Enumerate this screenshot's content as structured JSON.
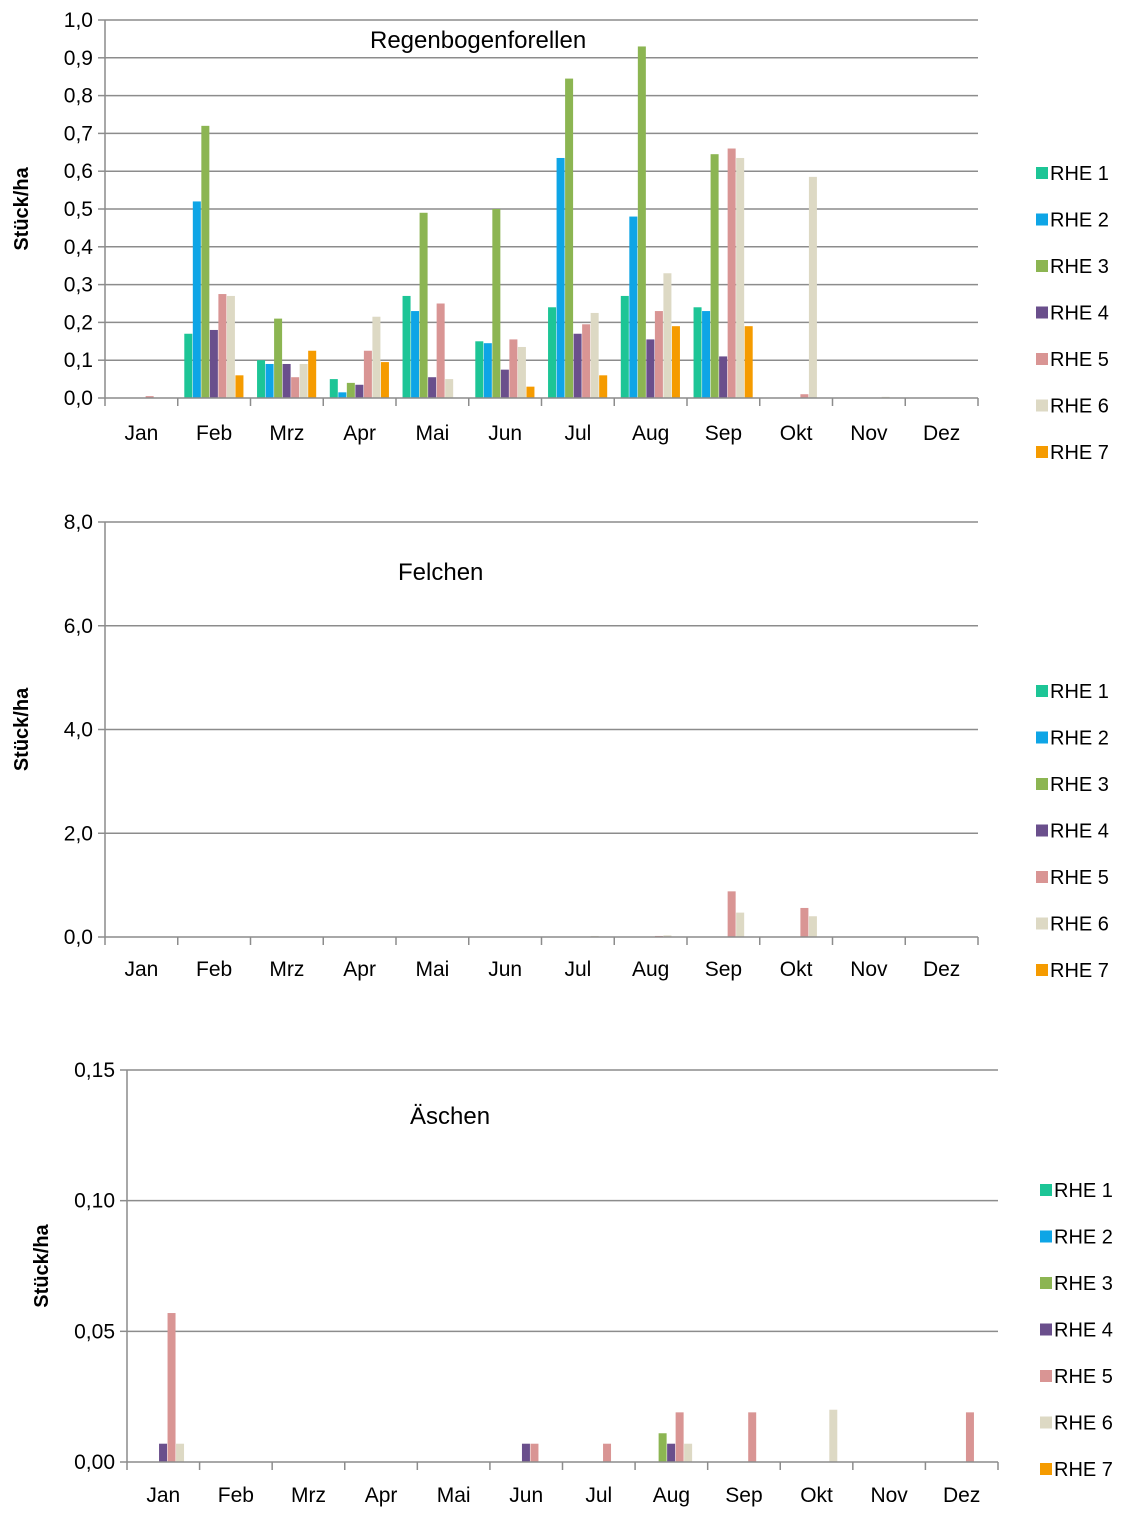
{
  "chart_data": [
    {
      "type": "bar",
      "title": "Regenbogenforellen",
      "xlabel": "",
      "ylabel": "Stück/ha",
      "ylim": [
        0,
        1.0
      ],
      "ytick_step": 0.1,
      "ytick_decimals": 1,
      "grid": true,
      "legend": "right",
      "categories": [
        "Jan",
        "Feb",
        "Mrz",
        "Apr",
        "Mai",
        "Jun",
        "Jul",
        "Aug",
        "Sep",
        "Okt",
        "Nov",
        "Dez"
      ],
      "series": [
        {
          "name": "RHE 1",
          "color": "#1dc596",
          "values": [
            0,
            0.17,
            0.1,
            0.05,
            0.27,
            0.15,
            0.24,
            0.27,
            0.24,
            0,
            0,
            0
          ]
        },
        {
          "name": "RHE 2",
          "color": "#0ea5e6",
          "values": [
            0,
            0.52,
            0.09,
            0.015,
            0.23,
            0.145,
            0.635,
            0.48,
            0.23,
            0,
            0,
            0
          ]
        },
        {
          "name": "RHE 3",
          "color": "#8cb552",
          "values": [
            0,
            0.72,
            0.21,
            0.04,
            0.49,
            0.5,
            0.845,
            0.93,
            0.645,
            0,
            0,
            0
          ]
        },
        {
          "name": "RHE 4",
          "color": "#6a4f8c",
          "values": [
            0,
            0.18,
            0.09,
            0.035,
            0.055,
            0.075,
            0.17,
            0.155,
            0.11,
            0,
            0,
            0
          ]
        },
        {
          "name": "RHE 5",
          "color": "#d99594",
          "values": [
            0.005,
            0.275,
            0.055,
            0.125,
            0.25,
            0.155,
            0.195,
            0.23,
            0.66,
            0.01,
            0,
            0
          ]
        },
        {
          "name": "RHE 6",
          "color": "#ddd9c4",
          "values": [
            0,
            0.27,
            0.09,
            0.215,
            0.05,
            0.135,
            0.225,
            0.33,
            0.635,
            0.585,
            0.003,
            0
          ]
        },
        {
          "name": "RHE 7",
          "color": "#f59b00",
          "values": [
            0,
            0.06,
            0.125,
            0.095,
            0,
            0.03,
            0.06,
            0.19,
            0.19,
            0,
            0,
            0
          ]
        }
      ]
    },
    {
      "type": "bar",
      "title": "Felchen",
      "xlabel": "",
      "ylabel": "Stück/ha",
      "ylim": [
        0,
        8.0
      ],
      "ytick_step": 2.0,
      "ytick_decimals": 1,
      "grid": true,
      "legend": "right",
      "categories": [
        "Jan",
        "Feb",
        "Mrz",
        "Apr",
        "Mai",
        "Jun",
        "Jul",
        "Aug",
        "Sep",
        "Okt",
        "Nov",
        "Dez"
      ],
      "series": [
        {
          "name": "RHE 1",
          "color": "#1dc596",
          "values": [
            0,
            0,
            0,
            0,
            0,
            0,
            0,
            0,
            0,
            0,
            0,
            0
          ]
        },
        {
          "name": "RHE 2",
          "color": "#0ea5e6",
          "values": [
            0,
            0,
            0,
            0,
            0,
            0,
            0,
            0,
            0,
            0,
            0,
            0
          ]
        },
        {
          "name": "RHE 3",
          "color": "#8cb552",
          "values": [
            0,
            0,
            0,
            0,
            0,
            0,
            0,
            0,
            0,
            0,
            0,
            0
          ]
        },
        {
          "name": "RHE 4",
          "color": "#6a4f8c",
          "values": [
            0,
            0,
            0,
            0,
            0,
            0,
            0,
            0,
            0,
            0,
            0,
            0
          ]
        },
        {
          "name": "RHE 5",
          "color": "#d99594",
          "values": [
            0,
            0,
            0,
            0,
            0,
            0,
            0.01,
            0.02,
            0.88,
            0.56,
            0,
            0
          ]
        },
        {
          "name": "RHE 6",
          "color": "#ddd9c4",
          "values": [
            0,
            0,
            0,
            0,
            0,
            0,
            0.02,
            0.03,
            0.47,
            0.4,
            0,
            0
          ]
        },
        {
          "name": "RHE 7",
          "color": "#f59b00",
          "values": [
            0,
            0,
            0,
            0,
            0,
            0,
            0,
            0,
            0,
            0,
            0,
            0
          ]
        }
      ]
    },
    {
      "type": "bar",
      "title": "Äschen",
      "xlabel": "",
      "ylabel": "Stück/ha",
      "ylim": [
        0,
        0.15
      ],
      "ytick_step": 0.05,
      "ytick_decimals": 2,
      "grid": true,
      "legend": "right",
      "categories": [
        "Jan",
        "Feb",
        "Mrz",
        "Apr",
        "Mai",
        "Jun",
        "Jul",
        "Aug",
        "Sep",
        "Okt",
        "Nov",
        "Dez"
      ],
      "series": [
        {
          "name": "RHE 1",
          "color": "#1dc596",
          "values": [
            0,
            0,
            0,
            0,
            0,
            0,
            0,
            0,
            0,
            0,
            0,
            0
          ]
        },
        {
          "name": "RHE 2",
          "color": "#0ea5e6",
          "values": [
            0,
            0,
            0,
            0,
            0,
            0,
            0,
            0,
            0,
            0,
            0,
            0
          ]
        },
        {
          "name": "RHE 3",
          "color": "#8cb552",
          "values": [
            0,
            0,
            0,
            0,
            0,
            0,
            0,
            0.011,
            0,
            0,
            0,
            0
          ]
        },
        {
          "name": "RHE 4",
          "color": "#6a4f8c",
          "values": [
            0.007,
            0,
            0,
            0,
            0,
            0.007,
            0,
            0.007,
            0,
            0,
            0,
            0
          ]
        },
        {
          "name": "RHE 5",
          "color": "#d99594",
          "values": [
            0.057,
            0,
            0,
            0,
            0,
            0.007,
            0.007,
            0.019,
            0.019,
            0,
            0,
            0.019
          ]
        },
        {
          "name": "RHE 6",
          "color": "#ddd9c4",
          "values": [
            0.007,
            0,
            0,
            0,
            0,
            0,
            0,
            0.007,
            0,
            0.02,
            0,
            0
          ]
        },
        {
          "name": "RHE 7",
          "color": "#f59b00",
          "values": [
            0,
            0,
            0,
            0,
            0,
            0,
            0,
            0,
            0,
            0,
            0,
            0
          ]
        }
      ]
    }
  ]
}
